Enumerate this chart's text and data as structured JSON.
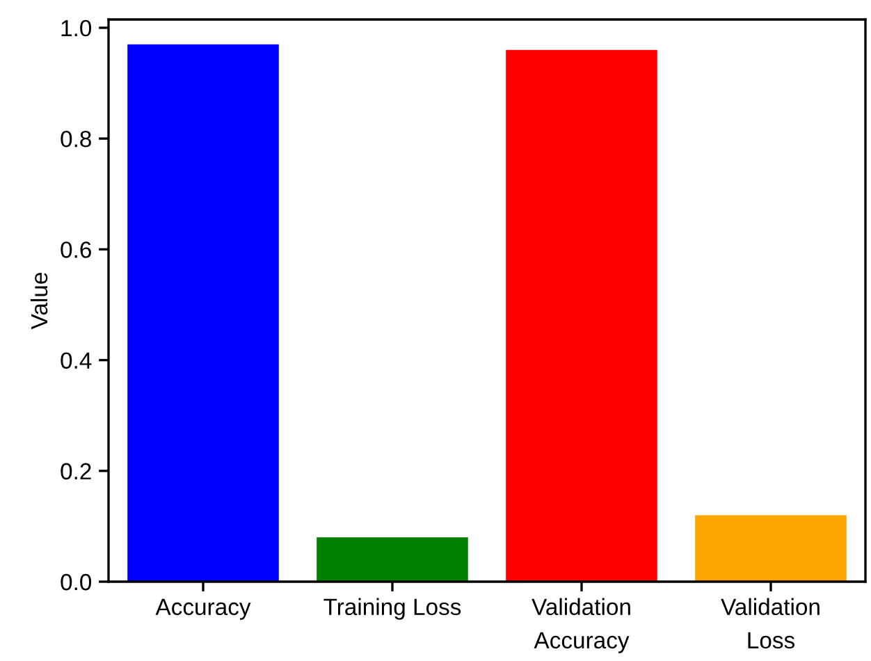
{
  "chart_data": {
    "type": "bar",
    "ylabel": "Value",
    "categories": [
      "Accuracy",
      "Training Loss",
      "Validation\nAccuracy",
      "Validation\nLoss"
    ],
    "values": [
      0.97,
      0.08,
      0.96,
      0.12
    ],
    "colors": [
      "#0000ff",
      "#008000",
      "#ff0000",
      "#ffa500"
    ],
    "ylim": [
      0,
      1.015
    ],
    "yticks": [
      {
        "value": 0,
        "label": "0.0"
      },
      {
        "value": 0.2,
        "label": "0.2"
      },
      {
        "value": 0.4,
        "label": "0.4"
      },
      {
        "value": 0.6,
        "label": "0.6"
      },
      {
        "value": 0.8,
        "label": "0.8"
      },
      {
        "value": 1,
        "label": "1.0"
      }
    ],
    "grid": false
  }
}
